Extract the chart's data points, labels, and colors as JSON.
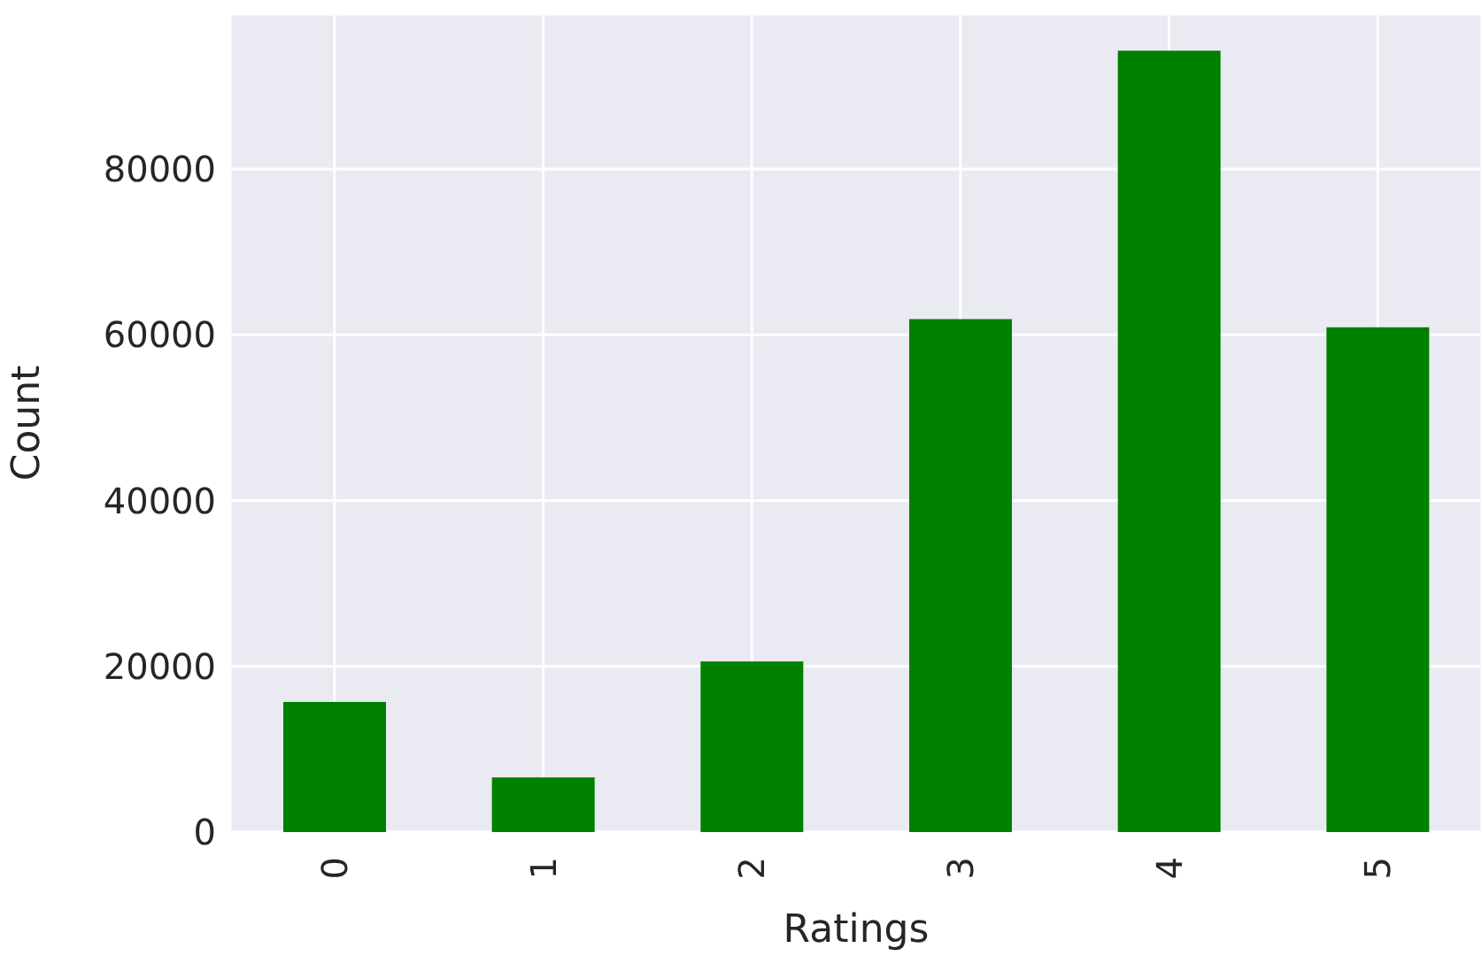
{
  "chart_data": {
    "type": "bar",
    "xlabel": "Ratings",
    "ylabel": "Count",
    "categories": [
      "0",
      "1",
      "2",
      "3",
      "4",
      "5"
    ],
    "values": [
      15700,
      6600,
      20600,
      61900,
      94300,
      60900
    ],
    "color": "#008000",
    "ylim": [
      0,
      98700
    ],
    "yticks": [
      0,
      20000,
      40000,
      60000,
      80000
    ],
    "grid": true
  }
}
